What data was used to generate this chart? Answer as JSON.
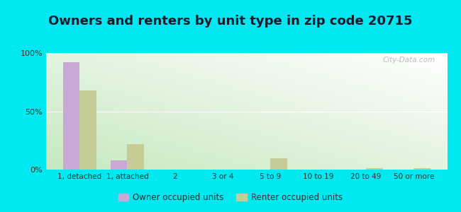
{
  "title": "Owners and renters by unit type in zip code 20715",
  "categories": [
    "1, detached",
    "1, attached",
    "2",
    "3 or 4",
    "5 to 9",
    "10 to 19",
    "20 to 49",
    "50 or more"
  ],
  "owner_values": [
    92,
    8,
    0,
    0,
    0,
    0,
    0,
    0
  ],
  "renter_values": [
    68,
    22,
    0,
    0,
    10,
    0,
    1,
    1
  ],
  "owner_color": "#c9a8d8",
  "renter_color": "#c5cc96",
  "background_outer": "#00e8f0",
  "ylim": [
    0,
    100
  ],
  "yticks": [
    0,
    50,
    100
  ],
  "ytick_labels": [
    "0%",
    "50%",
    "100%"
  ],
  "legend_owner": "Owner occupied units",
  "legend_renter": "Renter occupied units",
  "title_fontsize": 13,
  "watermark": "City-Data.com",
  "grad_left_bottom": "#c8e8c0",
  "grad_right_top": "#f8fff8"
}
